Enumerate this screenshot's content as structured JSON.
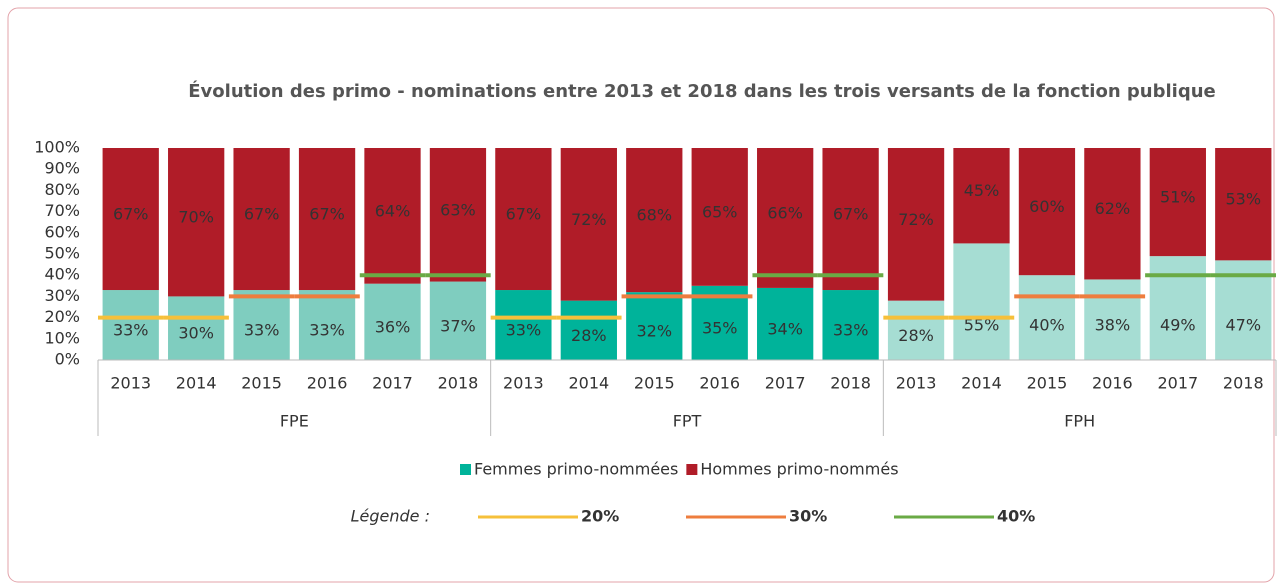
{
  "chart_data": {
    "type": "bar",
    "stacked": true,
    "title": "Évolution des primo - nominations entre 2013 et 2018 dans les trois versants de la fonction publique",
    "groups": [
      "FPE",
      "FPT",
      "FPH"
    ],
    "categories": [
      "2013",
      "2014",
      "2015",
      "2016",
      "2017",
      "2018",
      "2013",
      "2014",
      "2015",
      "2016",
      "2017",
      "2018",
      "2013",
      "2014",
      "2015",
      "2016",
      "2017",
      "2018"
    ],
    "series": [
      {
        "name": "Femmes primo-nommées",
        "color": "#00b39a",
        "group_colors": [
          "#7fcdbf",
          "#00b39a",
          "#a6ddd3"
        ],
        "values": [
          33,
          30,
          33,
          33,
          36,
          37,
          33,
          28,
          32,
          35,
          34,
          33,
          28,
          55,
          40,
          38,
          49,
          47
        ],
        "value_labels": [
          "33%",
          "30%",
          "33%",
          "33%",
          "36%",
          "37%",
          "33%",
          "28%",
          "32%",
          "35%",
          "34%",
          "33%",
          "28%",
          "55%",
          "40%",
          "38%",
          "49%",
          "47%"
        ]
      },
      {
        "name": "Hommes primo-nommés",
        "color": "#b01c28",
        "values": [
          67,
          70,
          67,
          67,
          64,
          63,
          67,
          72,
          68,
          65,
          66,
          67,
          72,
          45,
          60,
          62,
          51,
          53
        ],
        "value_labels": [
          "67%",
          "70%",
          "67%",
          "67%",
          "64%",
          "63%",
          "67%",
          "72%",
          "68%",
          "65%",
          "66%",
          "67%",
          "72%",
          "45%",
          "60%",
          "62%",
          "51%",
          "53%"
        ]
      }
    ],
    "ylim": [
      0,
      100
    ],
    "yticks": [
      {
        "value": 0,
        "label": "0%"
      },
      {
        "value": 10,
        "label": "10%"
      },
      {
        "value": 20,
        "label": "20%"
      },
      {
        "value": 30,
        "label": "30%"
      },
      {
        "value": 40,
        "label": "40%"
      },
      {
        "value": 50,
        "label": "50%"
      },
      {
        "value": 60,
        "label": "60%"
      },
      {
        "value": 70,
        "label": "70%"
      },
      {
        "value": 80,
        "label": "80%"
      },
      {
        "value": 90,
        "label": "90%"
      },
      {
        "value": 100,
        "label": "100%"
      }
    ],
    "reference_legend_title": "Légende :",
    "reference_lines": [
      {
        "value": 20,
        "label": "20%",
        "color": "#f6c03a",
        "categories": [
          "2013",
          "2014"
        ]
      },
      {
        "value": 30,
        "label": "30%",
        "color": "#ee7d3e",
        "categories": [
          "2015",
          "2016"
        ]
      },
      {
        "value": 40,
        "label": "40%",
        "color": "#6aaa45",
        "categories": [
          "2017",
          "2018"
        ]
      }
    ]
  }
}
